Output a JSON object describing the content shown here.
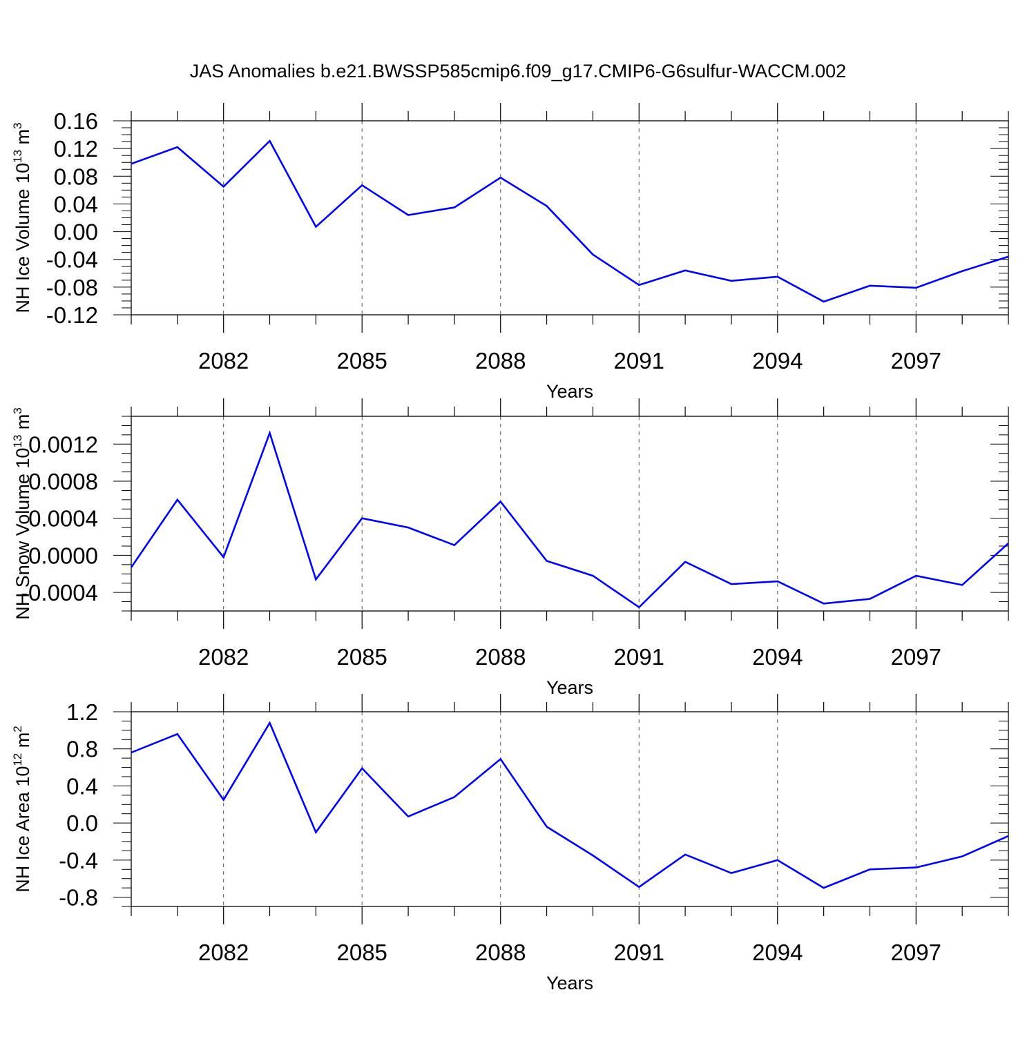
{
  "figure": {
    "title": "JAS Anomalies b.e21.BWSSP585cmip6.f09_g17.CMIP6-G6sulfur-WACCM.002",
    "line_color": "#0000ff"
  },
  "chart_data": [
    {
      "type": "line",
      "ylabel": "NH Ice Volume 10",
      "ylabel_sup": "13",
      "ylabel_unit": " m",
      "ylabel_unit_sup": "3",
      "xlabel": "Years",
      "xlim": [
        2080,
        2099
      ],
      "ylim": [
        -0.12,
        0.16
      ],
      "yticks": [
        -0.12,
        -0.08,
        -0.04,
        0.0,
        0.04,
        0.08,
        0.12,
        0.16
      ],
      "ytick_labels": [
        "-0.12",
        "-0.08",
        "-0.04",
        "0.00",
        "0.04",
        "0.08",
        "0.12",
        "0.16"
      ],
      "yminor_step": 0.01,
      "xticks": [
        2082,
        2085,
        2088,
        2091,
        2094,
        2097
      ],
      "xtick_labels": [
        "2082",
        "2085",
        "2088",
        "2091",
        "2094",
        "2097"
      ],
      "grid": "vertical-dashed",
      "series": [
        {
          "x": [
            2080,
            2081,
            2082,
            2083,
            2084,
            2085,
            2086,
            2087,
            2088,
            2089,
            2090,
            2091,
            2092,
            2093,
            2094,
            2095,
            2096,
            2097,
            2098,
            2099
          ],
          "values": [
            0.098,
            0.122,
            0.065,
            0.131,
            0.007,
            0.067,
            0.024,
            0.035,
            0.078,
            0.037,
            -0.033,
            -0.077,
            -0.056,
            -0.071,
            -0.065,
            -0.101,
            -0.078,
            -0.081,
            -0.057,
            -0.036
          ]
        }
      ]
    },
    {
      "type": "line",
      "ylabel": "NH Snow Volume 10",
      "ylabel_sup": "13",
      "ylabel_unit": " m",
      "ylabel_unit_sup": "3",
      "xlabel": "Years",
      "xlim": [
        2080,
        2099
      ],
      "ylim": [
        -0.0006,
        0.0015
      ],
      "yticks": [
        -0.0004,
        0.0,
        0.0004,
        0.0008,
        0.0012
      ],
      "ytick_labels": [
        "-0.0004",
        "0.0000",
        "0.0004",
        "0.0008",
        "0.0012"
      ],
      "yminor_step": 0.0001,
      "xticks": [
        2082,
        2085,
        2088,
        2091,
        2094,
        2097
      ],
      "xtick_labels": [
        "2082",
        "2085",
        "2088",
        "2091",
        "2094",
        "2097"
      ],
      "grid": "vertical-dashed",
      "series": [
        {
          "x": [
            2080,
            2081,
            2082,
            2083,
            2084,
            2085,
            2086,
            2087,
            2088,
            2089,
            2090,
            2091,
            2092,
            2093,
            2094,
            2095,
            2096,
            2097,
            2098,
            2099
          ],
          "values": [
            -0.00013,
            0.0006,
            -2e-05,
            0.00132,
            -0.00026,
            0.0004,
            0.0003,
            0.00011,
            0.00058,
            -6e-05,
            -0.00022,
            -0.00056,
            -7e-05,
            -0.00031,
            -0.00028,
            -0.00052,
            -0.00047,
            -0.00022,
            -0.00032,
            0.00013
          ]
        }
      ]
    },
    {
      "type": "line",
      "ylabel": "NH Ice Area 10",
      "ylabel_sup": "12",
      "ylabel_unit": " m",
      "ylabel_unit_sup": "2",
      "xlabel": "Years",
      "xlim": [
        2080,
        2099
      ],
      "ylim": [
        -0.9,
        1.2
      ],
      "yticks": [
        -0.8,
        -0.4,
        0.0,
        0.4,
        0.8,
        1.2
      ],
      "ytick_labels": [
        "-0.8",
        "-0.4",
        "0.0",
        "0.4",
        "0.8",
        "1.2"
      ],
      "yminor_step": 0.1,
      "xticks": [
        2082,
        2085,
        2088,
        2091,
        2094,
        2097
      ],
      "xtick_labels": [
        "2082",
        "2085",
        "2088",
        "2091",
        "2094",
        "2097"
      ],
      "grid": "vertical-dashed",
      "series": [
        {
          "x": [
            2080,
            2081,
            2082,
            2083,
            2084,
            2085,
            2086,
            2087,
            2088,
            2089,
            2090,
            2091,
            2092,
            2093,
            2094,
            2095,
            2096,
            2097,
            2098,
            2099
          ],
          "values": [
            0.76,
            0.96,
            0.25,
            1.08,
            -0.1,
            0.59,
            0.07,
            0.28,
            0.69,
            -0.04,
            -0.35,
            -0.69,
            -0.34,
            -0.54,
            -0.4,
            -0.7,
            -0.5,
            -0.48,
            -0.36,
            -0.14
          ]
        }
      ]
    }
  ]
}
